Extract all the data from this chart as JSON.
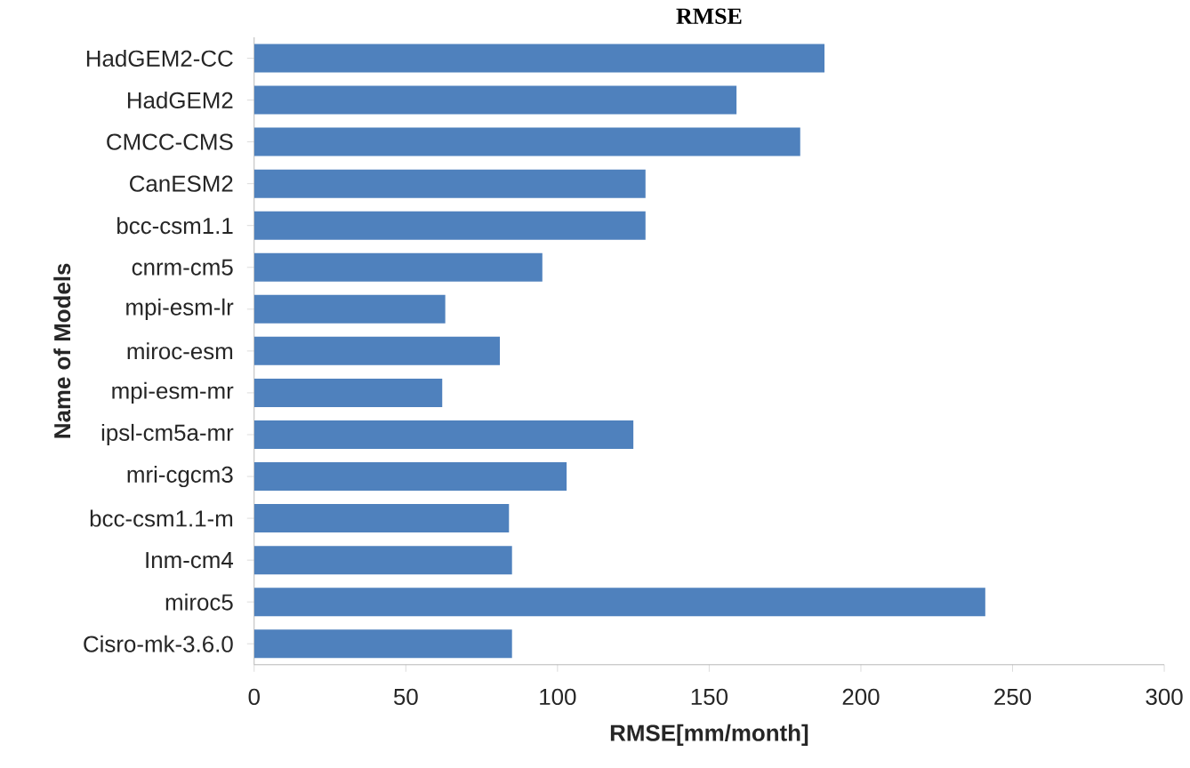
{
  "chart_data": {
    "type": "bar",
    "orientation": "horizontal",
    "title": "RMSE",
    "xlabel": "RMSE[mm/month]",
    "ylabel": "Name of Models",
    "categories": [
      "HadGEM2-CC",
      "HadGEM2",
      "CMCC-CMS",
      "CanESM2",
      "bcc-csm1.1",
      "cnrm-cm5",
      "mpi-esm-lr",
      "miroc-esm",
      "mpi-esm-mr",
      "ipsl-cm5a-mr",
      "mri-cgcm3",
      "bcc-csm1.1-m",
      "Inm-cm4",
      "miroc5",
      "Cisro-mk-3.6.0"
    ],
    "values": [
      188,
      159,
      180,
      129,
      129,
      95,
      63,
      81,
      62,
      125,
      103,
      84,
      85,
      241,
      85
    ],
    "color": "#4f81bd",
    "xlim": [
      0,
      300
    ],
    "xticks": [
      0,
      50,
      100,
      150,
      200,
      250,
      300
    ],
    "grid": false
  }
}
